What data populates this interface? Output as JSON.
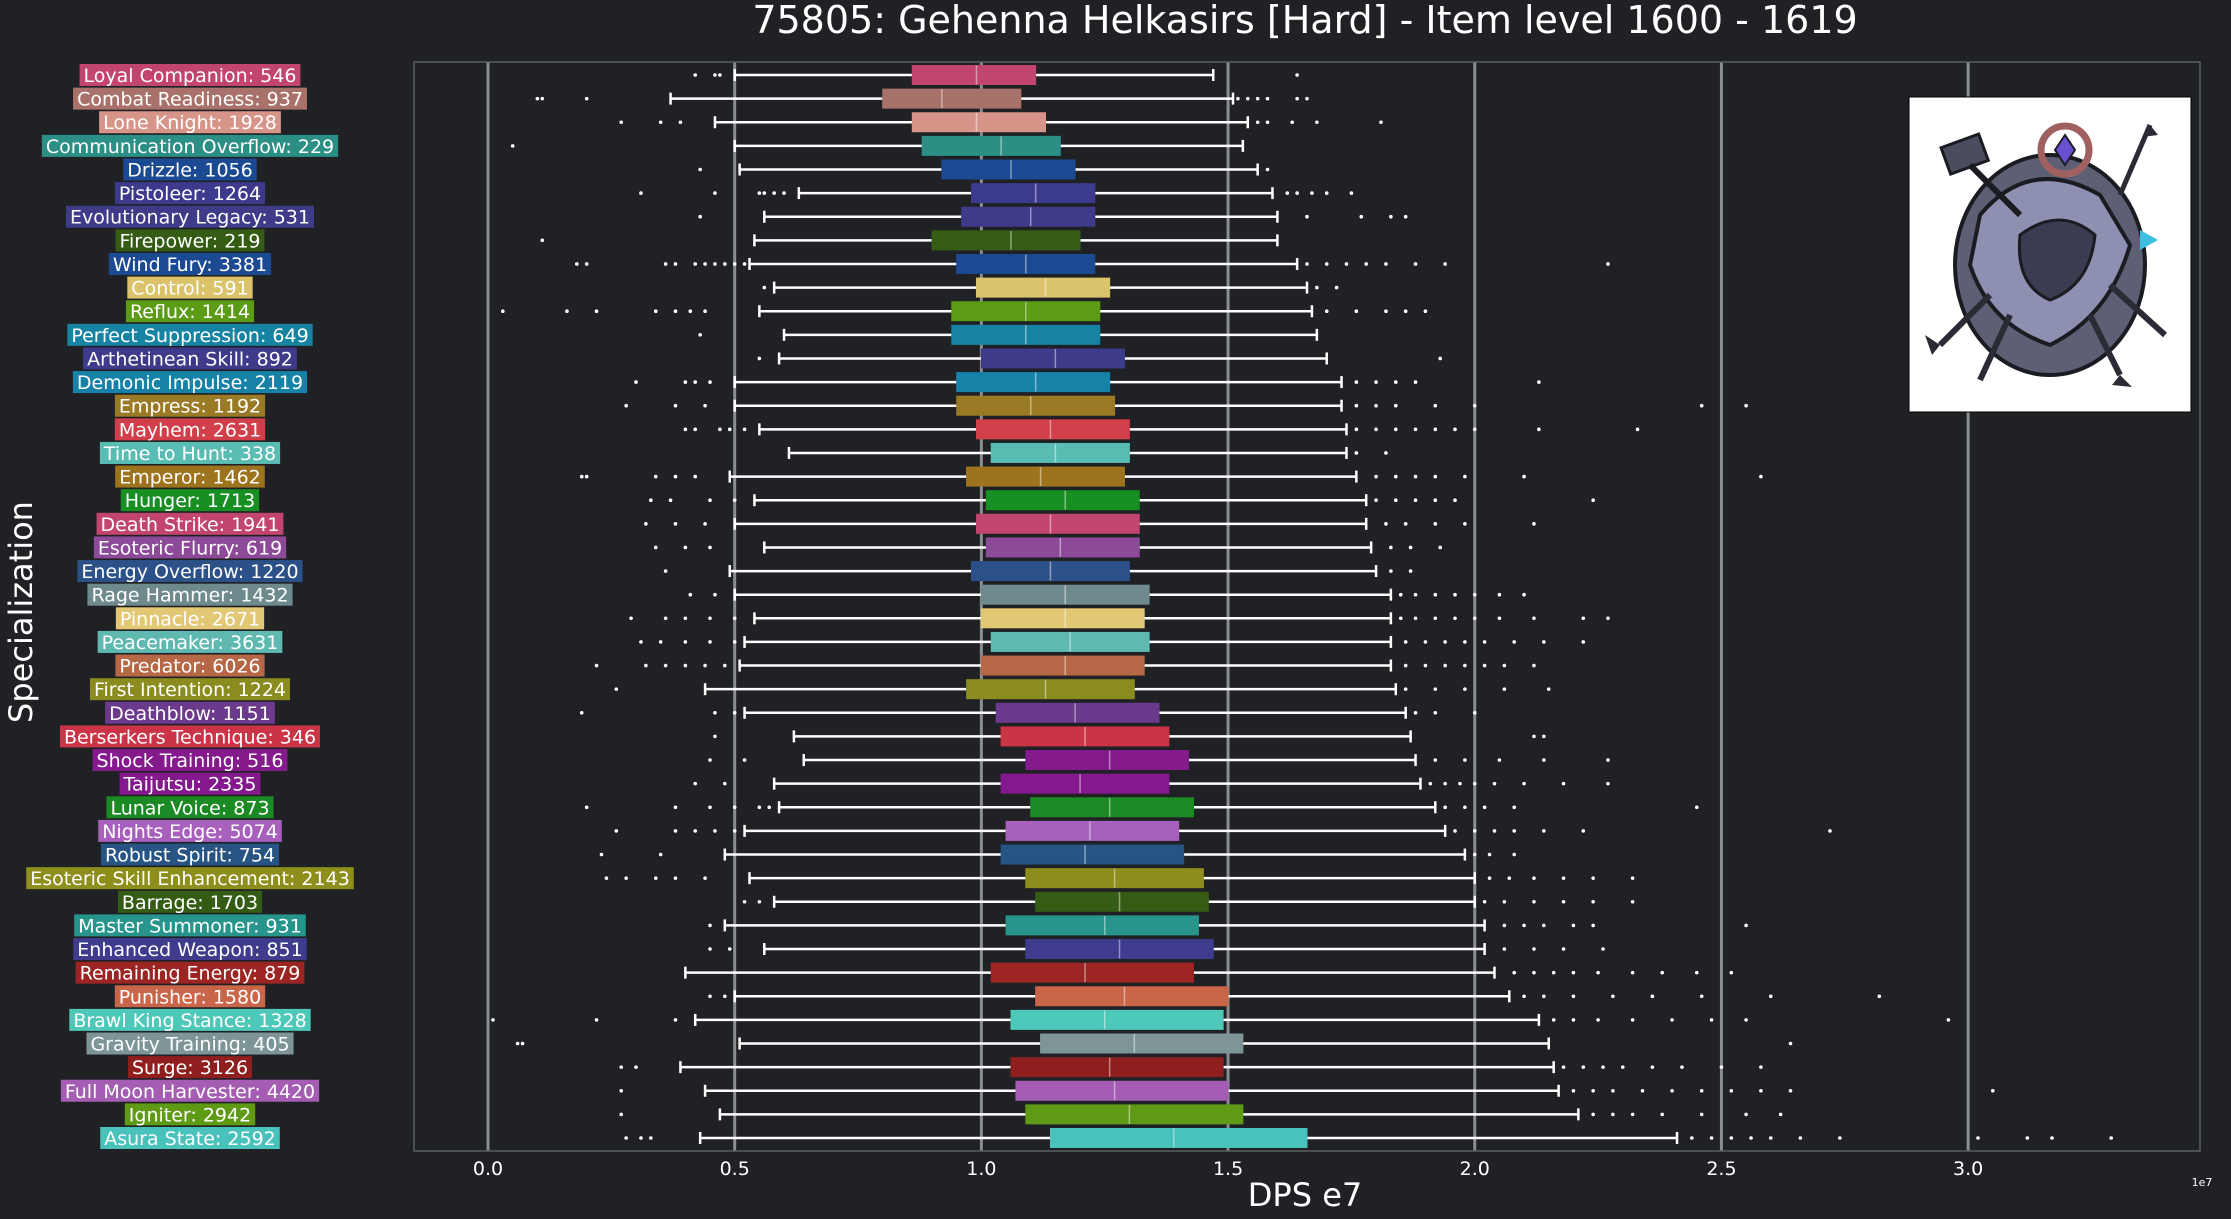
{
  "chart_data": {
    "type": "box",
    "title": "75805: Gehenna Helkasirs [Hard] - Item level 1600 - 1619",
    "xlabel": "DPS e7",
    "ylabel": "Specialization",
    "x_exponent_label": "1e7",
    "xlim": [
      -0.15,
      3.47
    ],
    "x_ticks": [
      0.0,
      0.5,
      1.0,
      1.5,
      2.0,
      2.5,
      3.0
    ],
    "x_tick_labels": [
      "0.0",
      "0.5",
      "1.0",
      "1.5",
      "2.0",
      "2.5",
      "3.0"
    ],
    "grid": "vertical",
    "colors": {
      "background": "#1f2125",
      "grid": "#8a8d92",
      "whisker": "#ffffff",
      "text": "#ffffff",
      "axes_border": "#5a5d62"
    },
    "legend": "none",
    "image": "boss-portrait",
    "series": [
      {
        "label": "Loyal Companion: 546",
        "color": "#c2456f",
        "whislo": 0.5,
        "q1": 0.86,
        "med": 0.99,
        "q3": 1.11,
        "whishi": 1.47,
        "fliers": [
          0.42,
          0.46,
          0.47,
          1.64
        ]
      },
      {
        "label": "Combat Readiness: 937",
        "color": "#a8726a",
        "whislo": 0.37,
        "q1": 0.8,
        "med": 0.92,
        "q3": 1.08,
        "whishi": 1.51,
        "fliers": [
          0.1,
          0.11,
          0.2,
          1.52,
          1.54,
          1.56,
          1.58,
          1.64,
          1.66
        ]
      },
      {
        "label": "Lone Knight: 1928",
        "color": "#d79589",
        "whislo": 0.46,
        "q1": 0.86,
        "med": 0.99,
        "q3": 1.13,
        "whishi": 1.54,
        "fliers": [
          0.27,
          0.35,
          0.39,
          1.56,
          1.58,
          1.63,
          1.68,
          1.81
        ]
      },
      {
        "label": "Communication Overflow: 229",
        "color": "#2b8f86",
        "whislo": 0.5,
        "q1": 0.88,
        "med": 1.04,
        "q3": 1.16,
        "whishi": 1.53,
        "fliers": [
          0.05
        ]
      },
      {
        "label": "Drizzle: 1056",
        "color": "#1c4a92",
        "whislo": 0.51,
        "q1": 0.92,
        "med": 1.06,
        "q3": 1.19,
        "whishi": 1.56,
        "fliers": [
          0.43,
          1.58
        ]
      },
      {
        "label": "Pistoleer: 1264",
        "color": "#3c3a8c",
        "whislo": 0.63,
        "q1": 0.98,
        "med": 1.11,
        "q3": 1.23,
        "whishi": 1.59,
        "fliers": [
          0.31,
          0.46,
          0.55,
          0.56,
          0.58,
          0.6,
          1.62,
          1.64,
          1.67,
          1.7,
          1.75
        ]
      },
      {
        "label": "Evolutionary Legacy: 531",
        "color": "#3e3b89",
        "whislo": 0.56,
        "q1": 0.96,
        "med": 1.1,
        "q3": 1.23,
        "whishi": 1.6,
        "fliers": [
          0.43,
          1.66,
          1.77,
          1.83,
          1.86
        ]
      },
      {
        "label": "Firepower: 219",
        "color": "#355c14",
        "whislo": 0.54,
        "q1": 0.9,
        "med": 1.06,
        "q3": 1.2,
        "whishi": 1.6,
        "fliers": [
          0.11
        ]
      },
      {
        "label": "Wind Fury: 3381",
        "color": "#1c4a92",
        "whislo": 0.53,
        "q1": 0.95,
        "med": 1.09,
        "q3": 1.23,
        "whishi": 1.64,
        "fliers": [
          0.18,
          0.2,
          0.36,
          0.38,
          0.42,
          0.44,
          0.46,
          0.48,
          0.5,
          0.52,
          1.66,
          1.7,
          1.74,
          1.78,
          1.82,
          1.88,
          1.94,
          2.27
        ]
      },
      {
        "label": "Control: 591",
        "color": "#dac36a",
        "whislo": 0.58,
        "q1": 0.99,
        "med": 1.13,
        "q3": 1.26,
        "whishi": 1.66,
        "fliers": [
          0.56,
          1.68,
          1.72
        ]
      },
      {
        "label": "Reflux: 1414",
        "color": "#5b9b15",
        "whislo": 0.55,
        "q1": 0.94,
        "med": 1.09,
        "q3": 1.24,
        "whishi": 1.67,
        "fliers": [
          0.03,
          0.16,
          0.22,
          0.34,
          0.38,
          0.41,
          0.44,
          1.7,
          1.76,
          1.82,
          1.86,
          1.9
        ]
      },
      {
        "label": "Perfect Suppression: 649",
        "color": "#1683a3",
        "whislo": 0.6,
        "q1": 0.94,
        "med": 1.09,
        "q3": 1.24,
        "whishi": 1.68,
        "fliers": [
          0.43
        ]
      },
      {
        "label": "Arthetinean Skill: 892",
        "color": "#3d3b8a",
        "whislo": 0.59,
        "q1": 1.0,
        "med": 1.15,
        "q3": 1.29,
        "whishi": 1.7,
        "fliers": [
          0.55,
          1.93
        ]
      },
      {
        "label": "Demonic Impulse: 2119",
        "color": "#1682a8",
        "whislo": 0.5,
        "q1": 0.95,
        "med": 1.11,
        "q3": 1.26,
        "whishi": 1.73,
        "fliers": [
          0.3,
          0.4,
          0.42,
          0.45,
          1.76,
          1.8,
          1.84,
          1.88,
          2.13
        ]
      },
      {
        "label": "Empress: 1192",
        "color": "#9a7a25",
        "whislo": 0.5,
        "q1": 0.95,
        "med": 1.1,
        "q3": 1.27,
        "whishi": 1.73,
        "fliers": [
          0.28,
          0.38,
          0.44,
          1.76,
          1.8,
          1.84,
          1.92,
          2.0,
          2.46,
          2.55
        ]
      },
      {
        "label": "Mayhem: 2631",
        "color": "#d13f4a",
        "whislo": 0.55,
        "q1": 0.99,
        "med": 1.14,
        "q3": 1.3,
        "whishi": 1.74,
        "fliers": [
          0.4,
          0.42,
          0.47,
          0.49,
          0.52,
          1.76,
          1.8,
          1.84,
          1.88,
          1.92,
          1.96,
          2.0,
          2.13,
          2.33
        ]
      },
      {
        "label": "Time to Hunt: 338",
        "color": "#5abdb4",
        "whislo": 0.61,
        "q1": 1.02,
        "med": 1.15,
        "q3": 1.3,
        "whishi": 1.74,
        "fliers": [
          1.76,
          1.82
        ]
      },
      {
        "label": "Emperor: 1462",
        "color": "#9d741d",
        "whislo": 0.49,
        "q1": 0.97,
        "med": 1.12,
        "q3": 1.29,
        "whishi": 1.76,
        "fliers": [
          0.19,
          0.2,
          0.34,
          0.38,
          0.42,
          1.8,
          1.84,
          1.88,
          1.92,
          1.98,
          2.1,
          2.58
        ]
      },
      {
        "label": "Hunger: 1713",
        "color": "#178f23",
        "whislo": 0.54,
        "q1": 1.01,
        "med": 1.17,
        "q3": 1.32,
        "whishi": 1.78,
        "fliers": [
          0.33,
          0.37,
          0.45,
          0.5,
          1.8,
          1.84,
          1.88,
          1.92,
          1.96,
          2.24
        ]
      },
      {
        "label": "Death Strike: 1941",
        "color": "#c2456f",
        "whislo": 0.5,
        "q1": 0.99,
        "med": 1.14,
        "q3": 1.32,
        "whishi": 1.78,
        "fliers": [
          0.32,
          0.38,
          0.44,
          1.82,
          1.86,
          1.92,
          1.98,
          2.12
        ]
      },
      {
        "label": "Esoteric Flurry: 619",
        "color": "#8d4a99",
        "whislo": 0.56,
        "q1": 1.01,
        "med": 1.16,
        "q3": 1.32,
        "whishi": 1.79,
        "fliers": [
          0.34,
          0.4,
          0.45,
          1.83,
          1.87,
          1.93
        ]
      },
      {
        "label": "Energy Overflow: 1220",
        "color": "#2c5188",
        "whislo": 0.49,
        "q1": 0.98,
        "med": 1.14,
        "q3": 1.3,
        "whishi": 1.8,
        "fliers": [
          0.36,
          1.83,
          1.87
        ]
      },
      {
        "label": "Rage Hammer: 1432",
        "color": "#6f8a8c",
        "whislo": 0.5,
        "q1": 1.0,
        "med": 1.17,
        "q3": 1.34,
        "whishi": 1.83,
        "fliers": [
          0.41,
          0.46,
          1.85,
          1.88,
          1.92,
          1.96,
          2.0,
          2.05,
          2.1
        ]
      },
      {
        "label": "Pinnacle: 2671",
        "color": "#e2c774",
        "whislo": 0.54,
        "q1": 1.0,
        "med": 1.17,
        "q3": 1.33,
        "whishi": 1.83,
        "fliers": [
          0.29,
          0.36,
          0.4,
          0.45,
          0.5,
          1.85,
          1.88,
          1.92,
          1.96,
          2.0,
          2.05,
          2.12,
          2.22,
          2.27
        ]
      },
      {
        "label": "Peacemaker: 3631",
        "color": "#5fb9b1",
        "whislo": 0.52,
        "q1": 1.02,
        "med": 1.18,
        "q3": 1.34,
        "whishi": 1.83,
        "fliers": [
          0.31,
          0.35,
          0.4,
          0.45,
          0.5,
          1.86,
          1.9,
          1.94,
          1.98,
          2.02,
          2.08,
          2.14,
          2.22
        ]
      },
      {
        "label": "Predator: 6026",
        "color": "#b66745",
        "whislo": 0.51,
        "q1": 1.0,
        "med": 1.17,
        "q3": 1.33,
        "whishi": 1.83,
        "fliers": [
          0.22,
          0.32,
          0.36,
          0.4,
          0.44,
          0.48,
          1.86,
          1.9,
          1.94,
          1.98,
          2.02,
          2.06,
          2.12
        ]
      },
      {
        "label": "First Intention: 1224",
        "color": "#8b8c20",
        "whislo": 0.44,
        "q1": 0.97,
        "med": 1.13,
        "q3": 1.31,
        "whishi": 1.84,
        "fliers": [
          0.26,
          1.86,
          1.92,
          1.98,
          2.06,
          2.15
        ]
      },
      {
        "label": "Deathblow: 1151",
        "color": "#6c3a8d",
        "whislo": 0.52,
        "q1": 1.03,
        "med": 1.19,
        "q3": 1.36,
        "whishi": 1.86,
        "fliers": [
          0.19,
          0.46,
          0.5,
          1.88,
          1.92,
          2.0
        ]
      },
      {
        "label": "Berserkers Technique: 346",
        "color": "#cb3447",
        "whislo": 0.62,
        "q1": 1.04,
        "med": 1.21,
        "q3": 1.38,
        "whishi": 1.87,
        "fliers": [
          0.46,
          2.12,
          2.14
        ]
      },
      {
        "label": "Shock Training: 516",
        "color": "#851a8d",
        "whislo": 0.64,
        "q1": 1.09,
        "med": 1.26,
        "q3": 1.42,
        "whishi": 1.88,
        "fliers": [
          0.45,
          0.52,
          1.92,
          1.98,
          2.05,
          2.14,
          2.27
        ]
      },
      {
        "label": "Taijutsu: 2335",
        "color": "#84198e",
        "whislo": 0.58,
        "q1": 1.04,
        "med": 1.2,
        "q3": 1.38,
        "whishi": 1.89,
        "fliers": [
          0.42,
          0.48,
          1.91,
          1.94,
          1.97,
          2.0,
          2.04,
          2.1,
          2.18,
          2.27
        ]
      },
      {
        "label": "Lunar Voice: 873",
        "color": "#1c8a24",
        "whislo": 0.59,
        "q1": 1.1,
        "med": 1.26,
        "q3": 1.43,
        "whishi": 1.92,
        "fliers": [
          0.2,
          0.38,
          0.45,
          0.5,
          0.55,
          0.57,
          1.94,
          1.98,
          2.02,
          2.08,
          2.45
        ]
      },
      {
        "label": "Nights Edge: 5074",
        "color": "#a760bb",
        "whislo": 0.52,
        "q1": 1.05,
        "med": 1.22,
        "q3": 1.4,
        "whishi": 1.94,
        "fliers": [
          0.26,
          0.38,
          0.42,
          0.46,
          0.5,
          1.96,
          2.0,
          2.04,
          2.08,
          2.14,
          2.22,
          2.72
        ]
      },
      {
        "label": "Robust Spirit: 754",
        "color": "#275482",
        "whislo": 0.48,
        "q1": 1.04,
        "med": 1.21,
        "q3": 1.41,
        "whishi": 1.98,
        "fliers": [
          0.23,
          0.35,
          2.0,
          2.03,
          2.08
        ]
      },
      {
        "label": "Esoteric Skill Enhancement: 2143",
        "color": "#8d8e1b",
        "whislo": 0.53,
        "q1": 1.09,
        "med": 1.27,
        "q3": 1.45,
        "whishi": 2.0,
        "fliers": [
          0.24,
          0.28,
          0.34,
          0.38,
          0.44,
          2.03,
          2.07,
          2.12,
          2.18,
          2.24,
          2.32
        ]
      },
      {
        "label": "Barrage: 1703",
        "color": "#355c14",
        "whislo": 0.58,
        "q1": 1.11,
        "med": 1.28,
        "q3": 1.46,
        "whishi": 2.0,
        "fliers": [
          0.52,
          0.55,
          2.02,
          2.06,
          2.12,
          2.18,
          2.24,
          2.32
        ]
      },
      {
        "label": "Master Summoner: 931",
        "color": "#27958b",
        "whislo": 0.48,
        "q1": 1.05,
        "med": 1.25,
        "q3": 1.44,
        "whishi": 2.02,
        "fliers": [
          0.45,
          2.06,
          2.1,
          2.14,
          2.2,
          2.24,
          2.55
        ]
      },
      {
        "label": "Enhanced Weapon: 851",
        "color": "#3f3c8d",
        "whislo": 0.56,
        "q1": 1.09,
        "med": 1.28,
        "q3": 1.47,
        "whishi": 2.02,
        "fliers": [
          0.45,
          0.49,
          2.06,
          2.12,
          2.18,
          2.26
        ]
      },
      {
        "label": "Remaining Energy: 879",
        "color": "#9c2523",
        "whislo": 0.4,
        "q1": 1.02,
        "med": 1.21,
        "q3": 1.43,
        "whishi": 2.04,
        "fliers": [
          2.08,
          2.12,
          2.16,
          2.2,
          2.25,
          2.32,
          2.38,
          2.45,
          2.52
        ]
      },
      {
        "label": "Punisher: 1580",
        "color": "#c96549",
        "whislo": 0.5,
        "q1": 1.11,
        "med": 1.29,
        "q3": 1.5,
        "whishi": 2.07,
        "fliers": [
          0.45,
          0.48,
          2.1,
          2.14,
          2.2,
          2.28,
          2.36,
          2.46,
          2.6,
          2.82
        ]
      },
      {
        "label": "Brawl King Stance: 1328",
        "color": "#4ec9b9",
        "whislo": 0.42,
        "q1": 1.06,
        "med": 1.25,
        "q3": 1.49,
        "whishi": 2.13,
        "fliers": [
          0.01,
          0.22,
          0.38,
          2.16,
          2.2,
          2.25,
          2.32,
          2.4,
          2.48,
          2.55,
          2.96
        ]
      },
      {
        "label": "Gravity Training: 405",
        "color": "#7e9597",
        "whislo": 0.51,
        "q1": 1.12,
        "med": 1.31,
        "q3": 1.53,
        "whishi": 2.15,
        "fliers": [
          0.06,
          0.07,
          2.64
        ]
      },
      {
        "label": "Surge: 3126",
        "color": "#8f1e1e",
        "whislo": 0.39,
        "q1": 1.06,
        "med": 1.26,
        "q3": 1.49,
        "whishi": 2.16,
        "fliers": [
          0.27,
          0.3,
          2.18,
          2.22,
          2.26,
          2.3,
          2.36,
          2.42,
          2.5,
          2.58
        ]
      },
      {
        "label": "Full Moon Harvester: 4420",
        "color": "#a45db2",
        "whislo": 0.44,
        "q1": 1.07,
        "med": 1.27,
        "q3": 1.5,
        "whishi": 2.17,
        "fliers": [
          0.27,
          2.2,
          2.24,
          2.28,
          2.34,
          2.4,
          2.46,
          2.52,
          2.58,
          2.64,
          3.05
        ]
      },
      {
        "label": "Igniter: 2942",
        "color": "#5e9a14",
        "whislo": 0.47,
        "q1": 1.09,
        "med": 1.3,
        "q3": 1.53,
        "whishi": 2.21,
        "fliers": [
          0.27,
          2.24,
          2.28,
          2.32,
          2.38,
          2.46,
          2.55,
          2.62
        ]
      },
      {
        "label": "Asura State: 2592",
        "color": "#48c2bb",
        "whislo": 0.43,
        "q1": 1.14,
        "med": 1.39,
        "q3": 1.66,
        "whishi": 2.41,
        "fliers": [
          0.28,
          0.31,
          0.33,
          2.44,
          2.48,
          2.52,
          2.56,
          2.6,
          2.66,
          2.74,
          3.02,
          3.12,
          3.17,
          3.29
        ]
      }
    ]
  }
}
